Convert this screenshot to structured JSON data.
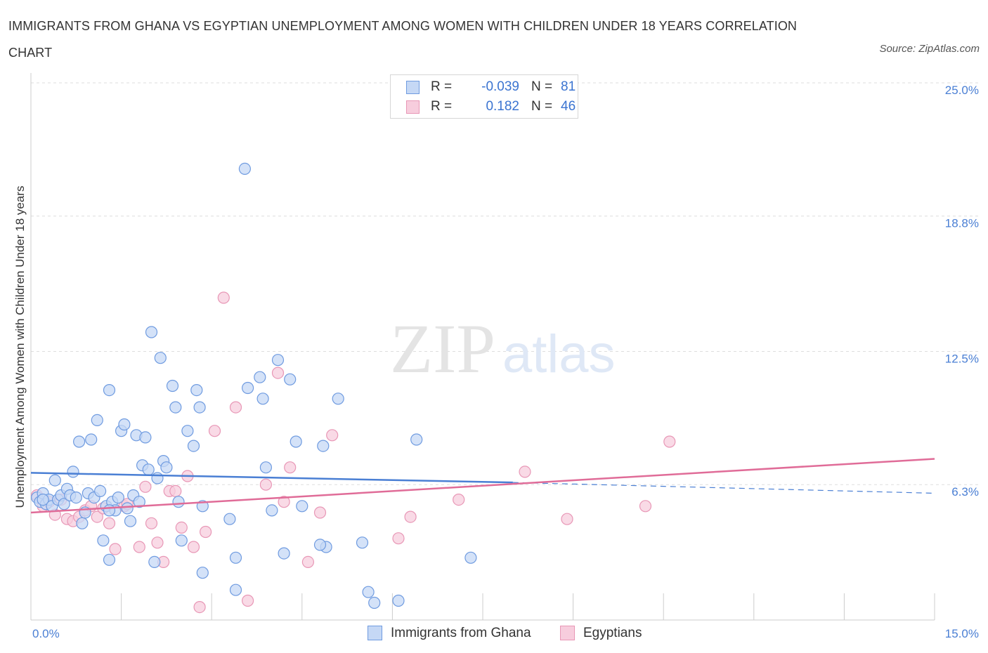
{
  "header": {
    "title": "IMMIGRANTS FROM GHANA VS EGYPTIAN UNEMPLOYMENT AMONG WOMEN WITH CHILDREN UNDER 18 YEARS CORRELATION CHART",
    "source": "Source: ZipAtlas.com"
  },
  "watermark": {
    "zip": "ZIP",
    "atlas": "atlas"
  },
  "colors": {
    "ghana": "#4a7fd4",
    "ghana_fill": "#c5d8f5",
    "egypt": "#e06c98",
    "egypt_fill": "#f7cddd",
    "tick_text": "#4a7fd4",
    "grid": "#dddddd"
  },
  "legend_top": {
    "rows": [
      {
        "r_label": "R =",
        "r_value": "-0.039",
        "n_label": "N =",
        "n_value": "81"
      },
      {
        "r_label": "R =",
        "r_value": "0.182",
        "n_label": "N =",
        "n_value": "46"
      }
    ]
  },
  "legend_bottom": {
    "items": [
      {
        "label": "Immigrants from Ghana"
      },
      {
        "label": "Egyptians"
      }
    ]
  },
  "chart_data": {
    "type": "scatter",
    "title": "IMMIGRANTS FROM GHANA VS EGYPTIAN UNEMPLOYMENT AMONG WOMEN WITH CHILDREN UNDER 18 YEARS CORRELATION CHART",
    "xlabel": "",
    "ylabel": "Unemployment Among Women with Children Under 18 years",
    "xlim": [
      0,
      15
    ],
    "ylim": [
      0,
      25
    ],
    "x_tick_labels": [
      "0.0%",
      "15.0%"
    ],
    "y_ticks": [
      6.3,
      12.5,
      18.8,
      25.0
    ],
    "y_tick_labels": [
      "6.3%",
      "12.5%",
      "18.8%",
      "25.0%"
    ],
    "grid": true,
    "legend_position": "bottom",
    "series": [
      {
        "name": "Immigrants from Ghana",
        "color": "#4a7fd4",
        "R": -0.039,
        "N": 81,
        "trend": {
          "x": [
            0.0,
            8.0
          ],
          "y": [
            6.85,
            6.4
          ]
        },
        "trend_extension": {
          "x": [
            8.0,
            15.0
          ],
          "y": [
            6.4,
            5.9
          ]
        },
        "points": [
          [
            0.1,
            5.7
          ],
          [
            0.15,
            5.5
          ],
          [
            0.2,
            5.9
          ],
          [
            0.25,
            5.4
          ],
          [
            0.3,
            5.6
          ],
          [
            0.35,
            5.3
          ],
          [
            0.4,
            6.5
          ],
          [
            0.45,
            5.6
          ],
          [
            0.5,
            5.8
          ],
          [
            0.55,
            5.4
          ],
          [
            0.6,
            6.1
          ],
          [
            0.65,
            5.8
          ],
          [
            0.7,
            6.9
          ],
          [
            0.75,
            5.7
          ],
          [
            0.8,
            8.3
          ],
          [
            0.85,
            4.5
          ],
          [
            0.9,
            5.0
          ],
          [
            0.95,
            5.9
          ],
          [
            1.0,
            8.4
          ],
          [
            1.05,
            5.7
          ],
          [
            1.1,
            9.3
          ],
          [
            1.15,
            6.0
          ],
          [
            1.2,
            3.7
          ],
          [
            1.25,
            5.3
          ],
          [
            1.3,
            2.8
          ],
          [
            1.3,
            10.7
          ],
          [
            1.35,
            5.5
          ],
          [
            1.4,
            5.1
          ],
          [
            1.45,
            5.7
          ],
          [
            1.5,
            8.8
          ],
          [
            1.55,
            9.1
          ],
          [
            1.6,
            5.2
          ],
          [
            1.65,
            4.6
          ],
          [
            1.7,
            5.8
          ],
          [
            1.75,
            8.6
          ],
          [
            1.8,
            5.5
          ],
          [
            1.85,
            7.2
          ],
          [
            1.9,
            8.5
          ],
          [
            1.95,
            7.0
          ],
          [
            2.0,
            13.4
          ],
          [
            2.05,
            2.7
          ],
          [
            2.1,
            6.6
          ],
          [
            2.15,
            12.2
          ],
          [
            2.2,
            7.4
          ],
          [
            2.25,
            7.1
          ],
          [
            2.35,
            10.9
          ],
          [
            2.4,
            9.9
          ],
          [
            2.45,
            5.5
          ],
          [
            2.5,
            3.7
          ],
          [
            2.6,
            8.8
          ],
          [
            2.7,
            8.1
          ],
          [
            2.75,
            10.7
          ],
          [
            2.8,
            9.9
          ],
          [
            2.85,
            5.3
          ],
          [
            2.85,
            2.2
          ],
          [
            3.3,
            4.7
          ],
          [
            3.4,
            1.4
          ],
          [
            3.55,
            21.0
          ],
          [
            3.6,
            10.8
          ],
          [
            3.8,
            11.3
          ],
          [
            3.85,
            10.3
          ],
          [
            3.9,
            7.1
          ],
          [
            4.0,
            5.1
          ],
          [
            4.1,
            12.1
          ],
          [
            4.2,
            3.1
          ],
          [
            4.3,
            11.2
          ],
          [
            4.4,
            8.3
          ],
          [
            4.5,
            5.3
          ],
          [
            4.85,
            8.1
          ],
          [
            4.9,
            3.4
          ],
          [
            5.1,
            10.3
          ],
          [
            5.5,
            3.6
          ],
          [
            5.6,
            1.3
          ],
          [
            5.7,
            0.8
          ],
          [
            6.1,
            0.9
          ],
          [
            6.4,
            8.4
          ],
          [
            7.3,
            2.9
          ],
          [
            3.4,
            2.9
          ],
          [
            4.8,
            3.5
          ],
          [
            1.3,
            5.1
          ],
          [
            0.2,
            5.6
          ]
        ]
      },
      {
        "name": "Egyptians",
        "color": "#e06c98",
        "R": 0.182,
        "N": 46,
        "trend": {
          "x": [
            0.0,
            15.0
          ],
          "y": [
            5.0,
            7.5
          ]
        },
        "points": [
          [
            0.1,
            5.8
          ],
          [
            0.2,
            5.3
          ],
          [
            0.3,
            5.5
          ],
          [
            0.4,
            4.9
          ],
          [
            0.5,
            5.6
          ],
          [
            0.6,
            4.7
          ],
          [
            0.7,
            4.6
          ],
          [
            0.8,
            4.8
          ],
          [
            0.9,
            5.1
          ],
          [
            1.0,
            5.3
          ],
          [
            1.1,
            4.8
          ],
          [
            1.2,
            5.2
          ],
          [
            1.3,
            4.5
          ],
          [
            1.4,
            3.3
          ],
          [
            1.55,
            5.3
          ],
          [
            1.6,
            5.4
          ],
          [
            1.8,
            3.4
          ],
          [
            1.9,
            6.2
          ],
          [
            2.0,
            4.5
          ],
          [
            2.1,
            3.6
          ],
          [
            2.2,
            2.7
          ],
          [
            2.3,
            6.0
          ],
          [
            2.4,
            6.0
          ],
          [
            2.5,
            4.3
          ],
          [
            2.6,
            6.7
          ],
          [
            2.7,
            3.4
          ],
          [
            2.8,
            0.6
          ],
          [
            2.9,
            4.1
          ],
          [
            3.05,
            8.8
          ],
          [
            3.2,
            15.0
          ],
          [
            3.4,
            9.9
          ],
          [
            3.6,
            0.9
          ],
          [
            3.9,
            6.3
          ],
          [
            4.1,
            11.5
          ],
          [
            4.2,
            5.5
          ],
          [
            4.3,
            7.1
          ],
          [
            4.6,
            2.7
          ],
          [
            4.8,
            5.0
          ],
          [
            5.0,
            8.6
          ],
          [
            6.1,
            3.8
          ],
          [
            6.3,
            4.8
          ],
          [
            7.1,
            5.6
          ],
          [
            8.2,
            6.9
          ],
          [
            8.9,
            4.7
          ],
          [
            10.2,
            5.3
          ],
          [
            10.6,
            8.3
          ]
        ]
      }
    ]
  }
}
